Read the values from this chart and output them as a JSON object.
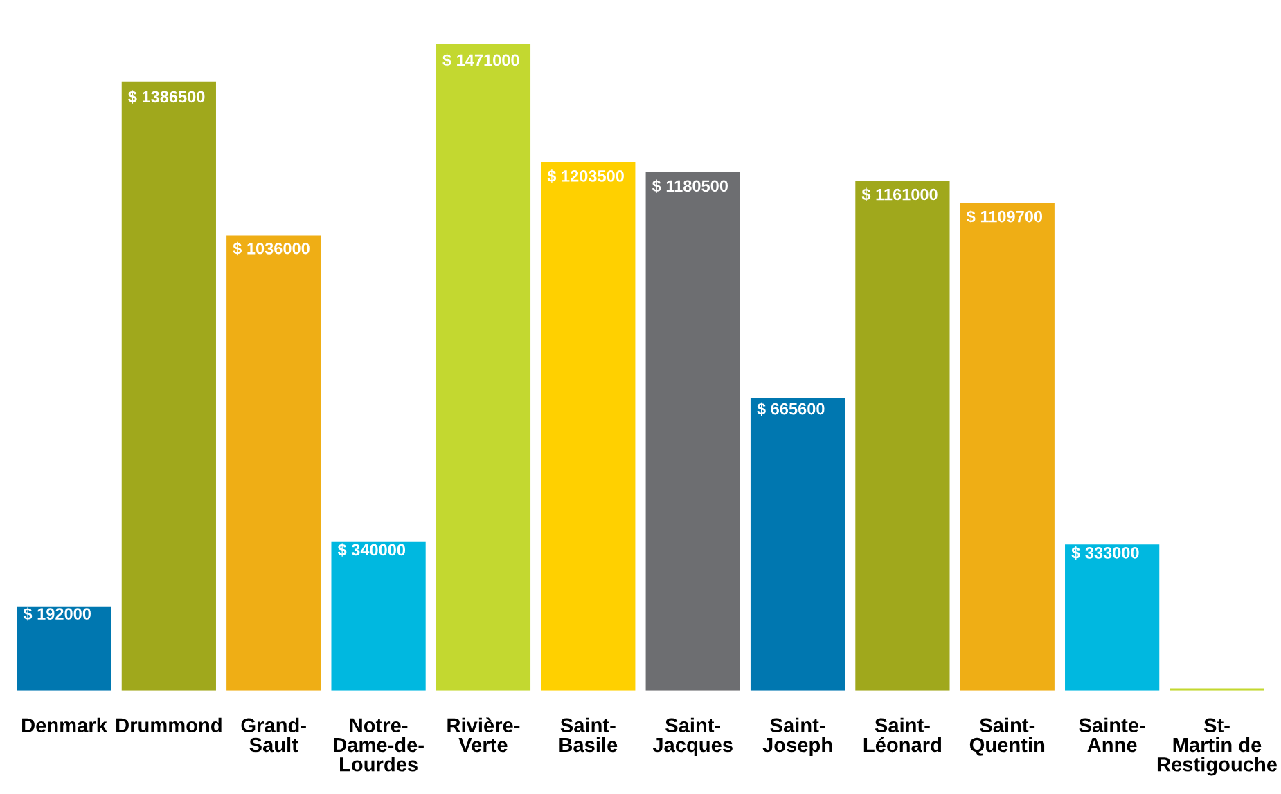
{
  "chart_data": {
    "type": "bar",
    "categories": [
      "Denmark",
      "Drummond",
      "Grand-Sault",
      "Notre-Dame-de-Lourdes",
      "Rivière-Verte",
      "Saint-Basile",
      "Saint-Jacques",
      "Saint-Joseph",
      "Saint-Léonard",
      "Saint-Quentin",
      "Sainte-Anne",
      "St-Martin de Restigouche"
    ],
    "values": [
      192000,
      1386500,
      1036000,
      340000,
      1471000,
      1203500,
      1180500,
      665600,
      1161000,
      1109700,
      333000,
      5000
    ],
    "colors": [
      "#0077b0",
      "#a0a81c",
      "#efae15",
      "#00b8e0",
      "#c3d830",
      "#ffd000",
      "#6d6e71",
      "#0077b0",
      "#a0a81c",
      "#efae15",
      "#00b8e0",
      "#c3d830"
    ],
    "value_labels": [
      "$ 192000",
      "$ 1386500",
      "$ 1036000",
      "$ 340000",
      "$ 1471000",
      "$ 1203500",
      "$ 1180500",
      "$ 665600",
      "$ 1161000",
      "$ 1109700",
      "$ 333000",
      null
    ],
    "grid": false,
    "legend": false
  }
}
